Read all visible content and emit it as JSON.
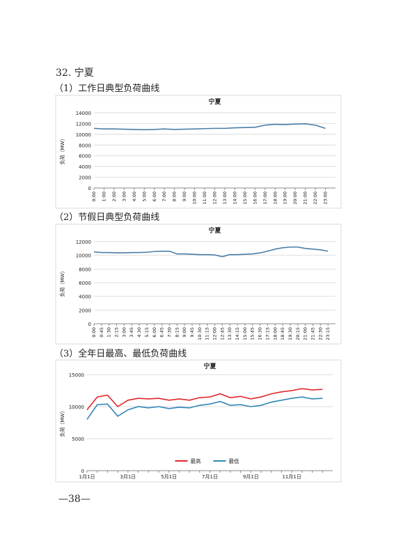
{
  "heading": "32. 宁夏",
  "sections": [
    "（1）工作日典型负荷曲线",
    "（2）节假日典型负荷曲线",
    "（3）全年日最高、最低负荷曲线"
  ],
  "page_number": "—38—",
  "chart_data": [
    {
      "type": "line",
      "title": "宁夏",
      "y_label": "负荷（MW）",
      "categories": [
        "0:00",
        "1:00",
        "2:00",
        "3:00",
        "4:00",
        "5:00",
        "6:00",
        "7:00",
        "8:00",
        "9:00",
        "10:00",
        "11:00",
        "12:00",
        "13:00",
        "14:00",
        "15:00",
        "16:00",
        "17:00",
        "18:00",
        "19:00",
        "20:00",
        "21:00",
        "22:00",
        "23:00"
      ],
      "series": [
        {
          "name": null,
          "color": "#4a7ea8",
          "values": [
            11100,
            11000,
            11000,
            10950,
            10900,
            10850,
            10900,
            11000,
            10900,
            10950,
            11000,
            11050,
            11100,
            11100,
            11200,
            11250,
            11300,
            11700,
            11850,
            11800,
            11900,
            11950,
            11700,
            11100
          ]
        }
      ],
      "ylim": [
        0,
        14000
      ],
      "yticks": [
        0,
        2000,
        4000,
        6000,
        8000,
        10000,
        12000,
        14000
      ],
      "grid": true
    },
    {
      "type": "line",
      "title": "宁夏",
      "y_label": "负荷（MW）",
      "categories": [
        "0:00",
        "0:45",
        "1:30",
        "2:15",
        "3:00",
        "3:45",
        "4:30",
        "5:15",
        "6:00",
        "6:45",
        "7:30",
        "8:15",
        "9:00",
        "9:45",
        "10:30",
        "11:15",
        "12:00",
        "12:45",
        "13:30",
        "14:15",
        "15:00",
        "15:45",
        "16:30",
        "17:15",
        "18:00",
        "18:45",
        "19:30",
        "20:15",
        "21:00",
        "21:45",
        "22:30",
        "23:15"
      ],
      "series": [
        {
          "name": null,
          "color": "#4a7ea8",
          "values": [
            10500,
            10400,
            10400,
            10350,
            10350,
            10400,
            10400,
            10450,
            10550,
            10600,
            10600,
            10200,
            10200,
            10150,
            10100,
            10100,
            10050,
            9800,
            10100,
            10100,
            10150,
            10200,
            10350,
            10600,
            10900,
            11100,
            11200,
            11200,
            11000,
            10900,
            10800,
            10600
          ]
        }
      ],
      "ylim": [
        0,
        12000
      ],
      "yticks": [
        0,
        2000,
        4000,
        6000,
        8000,
        10000,
        12000
      ],
      "grid": true
    },
    {
      "type": "line",
      "title": "宁夏",
      "y_label": "负荷（MW）",
      "categories": [
        "1月1日",
        null,
        null,
        null,
        "3月1日",
        null,
        null,
        null,
        "5月1日",
        null,
        null,
        null,
        "7月1日",
        null,
        null,
        null,
        "9月1日",
        null,
        null,
        null,
        "11月1日",
        null,
        null,
        null
      ],
      "series": [
        {
          "name": "最高",
          "color": "#e0262a",
          "values": [
            9500,
            11500,
            11800,
            10000,
            11000,
            11300,
            11200,
            11300,
            11000,
            11200,
            11000,
            11400,
            11500,
            12000,
            11400,
            11600,
            11200,
            11500,
            12000,
            12300,
            12500,
            12800,
            12600,
            12700
          ]
        },
        {
          "name": "最低",
          "color": "#2f86b8",
          "values": [
            8000,
            10300,
            10400,
            8500,
            9500,
            10000,
            9800,
            10000,
            9700,
            9900,
            9800,
            10200,
            10400,
            10800,
            10200,
            10300,
            10000,
            10200,
            10700,
            11000,
            11300,
            11500,
            11200,
            11300
          ]
        }
      ],
      "ylim": [
        0,
        15000
      ],
      "yticks": [
        0,
        5000,
        10000,
        15000
      ],
      "grid": true,
      "legend": "bottom"
    }
  ]
}
